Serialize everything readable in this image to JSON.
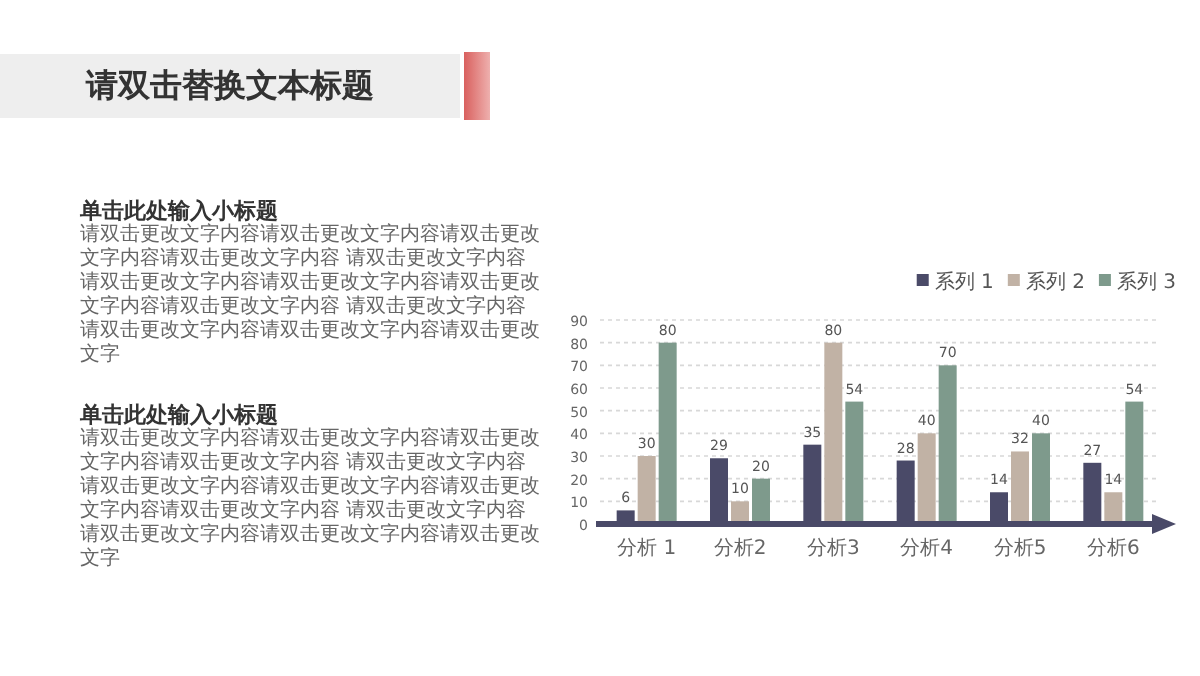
{
  "chart_data": {
    "type": "bar",
    "title": "请双击替换文本标题",
    "annotations": [
      "单击此处输入小标题",
      "请双击更改文字内容请双击更改文字内容请双击更改文字内容请双击更改文字内容 请双击更改文字内容请双击更改文字内容请双击更改文字内容请双击更改文字内容请双击更改文字内容 请双击更改文字内容请双击更改文字内容请双击更改文字内容请双击更改文字",
      "单击此处输入小标题",
      "请双击更改文字内容请双击更改文字内容请双击更改文字内容请双击更改文字内容 请双击更改文字内容请双击更改文字内容请双击更改文字内容请双击更改文字内容请双击更改文字内容 请双击更改文字内容请双击更改文字内容请双击更改文字内容请双击更改文字"
    ],
    "categories": [
      "分析 1",
      "分析2",
      "分析3",
      "分析4",
      "分析5",
      "分析6"
    ],
    "series": [
      {
        "name": "系列 1",
        "color": "#4a4a68",
        "values": [
          6,
          29,
          35,
          28,
          14,
          27
        ]
      },
      {
        "name": "系列 2",
        "color": "#c1b2a5",
        "values": [
          30,
          10,
          80,
          40,
          32,
          14
        ]
      },
      {
        "name": "系列 3",
        "color": "#7e9a8c",
        "values": [
          80,
          20,
          54,
          70,
          40,
          54
        ]
      }
    ],
    "ylim": [
      0,
      90
    ],
    "yticks": [
      0,
      10,
      20,
      30,
      40,
      50,
      60,
      70,
      80,
      90
    ],
    "grid": "y",
    "legend": "top right",
    "data_labels": true
  }
}
